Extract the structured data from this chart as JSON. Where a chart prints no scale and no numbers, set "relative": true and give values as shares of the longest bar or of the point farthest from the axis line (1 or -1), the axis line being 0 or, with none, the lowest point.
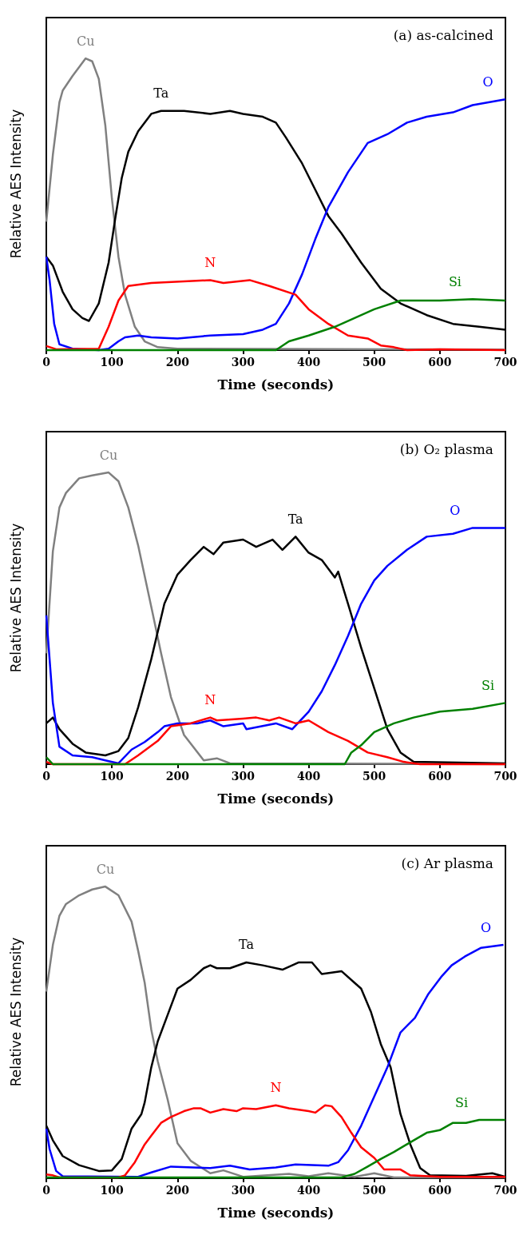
{
  "chart_data": [
    {
      "type": "line",
      "title": "(a) as-calcined",
      "xlabel": "Time (seconds)",
      "ylabel": "Relative AES Intensity",
      "relative": true,
      "xlim": [
        0,
        700
      ],
      "xticks": [
        0,
        100,
        200,
        300,
        400,
        500,
        600,
        700
      ],
      "series": [
        {
          "name": "Cu",
          "color": "#808080",
          "x": [
            0,
            10,
            20,
            25,
            40,
            50,
            60,
            70,
            80,
            90,
            100,
            110,
            120,
            135,
            150,
            170,
            200,
            700
          ],
          "values": [
            0.44,
            0.67,
            0.85,
            0.89,
            0.94,
            0.97,
            1,
            0.99,
            0.93,
            0.77,
            0.52,
            0.32,
            0.19,
            0.08,
            0.03,
            0.01,
            0.005,
            0.002
          ]
        },
        {
          "name": "Ta",
          "color": "#000000",
          "x": [
            0,
            10,
            25,
            40,
            55,
            65,
            80,
            95,
            105,
            115,
            125,
            140,
            160,
            175,
            210,
            250,
            280,
            300,
            330,
            350,
            365,
            390,
            410,
            430,
            450,
            480,
            510,
            540,
            580,
            620,
            660,
            700
          ],
          "values": [
            0.32,
            0.29,
            0.2,
            0.14,
            0.11,
            0.1,
            0.16,
            0.3,
            0.45,
            0.59,
            0.68,
            0.75,
            0.81,
            0.82,
            0.82,
            0.81,
            0.82,
            0.81,
            0.8,
            0.78,
            0.73,
            0.64,
            0.55,
            0.46,
            0.4,
            0.3,
            0.21,
            0.16,
            0.12,
            0.09,
            0.08,
            0.07
          ]
        },
        {
          "name": "O",
          "color": "#0000ff",
          "x": [
            0,
            5,
            12,
            20,
            40,
            80,
            95,
            110,
            120,
            140,
            160,
            200,
            250,
            300,
            330,
            350,
            370,
            390,
            410,
            430,
            460,
            490,
            520,
            550,
            580,
            620,
            650,
            700
          ],
          "values": [
            0.32,
            0.24,
            0.09,
            0.02,
            0.005,
            0,
            0.005,
            0.03,
            0.044,
            0.05,
            0.044,
            0.04,
            0.05,
            0.055,
            0.07,
            0.09,
            0.16,
            0.26,
            0.38,
            0.49,
            0.61,
            0.71,
            0.74,
            0.78,
            0.8,
            0.815,
            0.84,
            0.86
          ]
        },
        {
          "name": "N",
          "color": "#ff0000",
          "x": [
            0,
            15,
            80,
            95,
            110,
            125,
            160,
            250,
            270,
            310,
            340,
            380,
            400,
            430,
            460,
            490,
            510,
            530,
            550,
            600,
            700
          ],
          "values": [
            0.014,
            0.003,
            0.005,
            0.08,
            0.17,
            0.22,
            0.23,
            0.24,
            0.23,
            0.24,
            0.22,
            0.19,
            0.14,
            0.09,
            0.05,
            0.04,
            0.016,
            0.01,
            0,
            0.003,
            0
          ]
        },
        {
          "name": "Si",
          "color": "#008000",
          "x": [
            0,
            350,
            370,
            400,
            440,
            470,
            500,
            540,
            600,
            650,
            700
          ],
          "values": [
            0,
            0,
            0.03,
            0.05,
            0.08,
            0.11,
            0.14,
            0.17,
            0.17,
            0.175,
            0.17
          ]
        }
      ]
    },
    {
      "type": "line",
      "title": "(b) O₂ plasma",
      "xlabel": "Time (seconds)",
      "ylabel": "Relative AES Intensity",
      "relative": true,
      "xlim": [
        0,
        700
      ],
      "xticks": [
        0,
        100,
        200,
        300,
        400,
        500,
        600,
        700
      ],
      "series": [
        {
          "name": "Cu",
          "color": "#808080",
          "x": [
            0,
            10,
            20,
            30,
            50,
            70,
            95,
            110,
            125,
            140,
            160,
            175,
            190,
            210,
            240,
            260,
            280,
            700
          ],
          "values": [
            0.38,
            0.73,
            0.88,
            0.93,
            0.98,
            0.99,
            1,
            0.97,
            0.88,
            0.75,
            0.54,
            0.38,
            0.23,
            0.1,
            0.013,
            0.02,
            0.003,
            0
          ]
        },
        {
          "name": "Ta",
          "color": "#000000",
          "x": [
            0,
            10,
            20,
            40,
            60,
            90,
            110,
            125,
            140,
            160,
            180,
            200,
            220,
            240,
            255,
            270,
            300,
            320,
            345,
            360,
            380,
            400,
            420,
            440,
            445,
            460,
            480,
            500,
            520,
            540,
            560,
            700
          ],
          "values": [
            0.14,
            0.16,
            0.12,
            0.07,
            0.04,
            0.03,
            0.045,
            0.09,
            0.195,
            0.36,
            0.55,
            0.65,
            0.7,
            0.745,
            0.72,
            0.76,
            0.77,
            0.745,
            0.77,
            0.735,
            0.78,
            0.725,
            0.7,
            0.64,
            0.66,
            0.55,
            0.4,
            0.26,
            0.12,
            0.04,
            0.008,
            0.003
          ]
        },
        {
          "name": "O",
          "color": "#0000ff",
          "x": [
            0,
            10,
            20,
            40,
            70,
            90,
            110,
            130,
            150,
            170,
            180,
            200,
            230,
            250,
            270,
            300,
            305,
            350,
            375,
            400,
            420,
            440,
            460,
            480,
            500,
            520,
            550,
            580,
            620,
            650,
            700
          ],
          "values": [
            0.51,
            0.21,
            0.06,
            0.03,
            0.024,
            0.013,
            0.003,
            0.05,
            0.076,
            0.11,
            0.13,
            0.14,
            0.14,
            0.15,
            0.13,
            0.14,
            0.12,
            0.14,
            0.12,
            0.18,
            0.25,
            0.34,
            0.44,
            0.55,
            0.63,
            0.68,
            0.735,
            0.78,
            0.79,
            0.81,
            0.81
          ]
        },
        {
          "name": "N",
          "color": "#ff0000",
          "x": [
            0,
            10,
            120,
            140,
            170,
            190,
            220,
            250,
            260,
            300,
            320,
            340,
            355,
            380,
            400,
            430,
            460,
            490,
            520,
            545,
            570,
            700
          ],
          "values": [
            0.008,
            0,
            0,
            0.03,
            0.08,
            0.13,
            0.14,
            0.16,
            0.15,
            0.156,
            0.16,
            0.15,
            0.16,
            0.14,
            0.15,
            0.11,
            0.08,
            0.04,
            0.024,
            0.008,
            0,
            0
          ]
        },
        {
          "name": "Si",
          "color": "#008000",
          "x": [
            0,
            10,
            455,
            465,
            480,
            500,
            530,
            560,
            600,
            650,
            700
          ],
          "values": [
            0.024,
            0,
            0,
            0.04,
            0.065,
            0.11,
            0.14,
            0.16,
            0.18,
            0.19,
            0.21
          ]
        }
      ]
    },
    {
      "type": "line",
      "title": "(c) Ar plasma",
      "xlabel": "Time (seconds)",
      "ylabel": "Relative AES Intensity",
      "relative": true,
      "xlim": [
        0,
        700
      ],
      "xticks": [
        0,
        100,
        200,
        300,
        400,
        500,
        600,
        700
      ],
      "series": [
        {
          "name": "Cu",
          "color": "#808080",
          "x": [
            0,
            10,
            20,
            30,
            50,
            70,
            90,
            110,
            130,
            140,
            150,
            160,
            170,
            185,
            200,
            220,
            250,
            270,
            300,
            370,
            400,
            430,
            470,
            500,
            530,
            700
          ],
          "values": [
            0.64,
            0.8,
            0.9,
            0.94,
            0.97,
            0.99,
            1,
            0.97,
            0.88,
            0.78,
            0.67,
            0.51,
            0.4,
            0.27,
            0.12,
            0.06,
            0.017,
            0.027,
            0.005,
            0.015,
            0.007,
            0.017,
            0.005,
            0.017,
            0.003,
            0.003
          ]
        },
        {
          "name": "Ta",
          "color": "#000000",
          "x": [
            0,
            10,
            25,
            50,
            80,
            100,
            115,
            130,
            145,
            150,
            160,
            170,
            185,
            200,
            220,
            240,
            250,
            260,
            280,
            305,
            330,
            360,
            385,
            405,
            420,
            450,
            470,
            480,
            495,
            510,
            525,
            540,
            555,
            570,
            585,
            640,
            680,
            700
          ],
          "values": [
            0.18,
            0.13,
            0.076,
            0.045,
            0.025,
            0.027,
            0.066,
            0.17,
            0.22,
            0.26,
            0.38,
            0.47,
            0.56,
            0.65,
            0.68,
            0.72,
            0.73,
            0.72,
            0.72,
            0.74,
            0.73,
            0.715,
            0.74,
            0.74,
            0.7,
            0.71,
            0.67,
            0.65,
            0.57,
            0.46,
            0.38,
            0.22,
            0.116,
            0.035,
            0.01,
            0.008,
            0.017,
            0.005
          ]
        },
        {
          "name": "O",
          "color": "#0000ff",
          "x": [
            0,
            5,
            15,
            25,
            140,
            160,
            190,
            250,
            280,
            310,
            350,
            380,
            430,
            445,
            460,
            480,
            500,
            520,
            540,
            562,
            582,
            602,
            618,
            638,
            663,
            697
          ],
          "values": [
            0.17,
            0.1,
            0.025,
            0.007,
            0.005,
            0.02,
            0.04,
            0.035,
            0.043,
            0.03,
            0.037,
            0.047,
            0.043,
            0.055,
            0.096,
            0.18,
            0.28,
            0.38,
            0.5,
            0.55,
            0.63,
            0.69,
            0.73,
            0.76,
            0.79,
            0.8
          ]
        },
        {
          "name": "N",
          "color": "#ff0000",
          "x": [
            0,
            10,
            20,
            110,
            120,
            135,
            150,
            160,
            175,
            190,
            210,
            225,
            235,
            250,
            270,
            290,
            300,
            320,
            350,
            370,
            400,
            410,
            425,
            435,
            450,
            465,
            480,
            500,
            515,
            540,
            555,
            600,
            700
          ],
          "values": [
            0.013,
            0.01,
            0.003,
            0.003,
            0.01,
            0.055,
            0.116,
            0.146,
            0.19,
            0.21,
            0.23,
            0.24,
            0.24,
            0.225,
            0.237,
            0.23,
            0.24,
            0.237,
            0.25,
            0.24,
            0.23,
            0.225,
            0.25,
            0.247,
            0.21,
            0.156,
            0.106,
            0.07,
            0.03,
            0.03,
            0.01,
            0.005,
            0.005
          ]
        },
        {
          "name": "Si",
          "color": "#008000",
          "x": [
            0,
            450,
            470,
            490,
            510,
            530,
            560,
            580,
            600,
            620,
            640,
            660,
            700
          ],
          "values": [
            0.003,
            0.003,
            0.015,
            0.04,
            0.066,
            0.09,
            0.13,
            0.156,
            0.165,
            0.19,
            0.19,
            0.2,
            0.2
          ]
        }
      ]
    }
  ]
}
